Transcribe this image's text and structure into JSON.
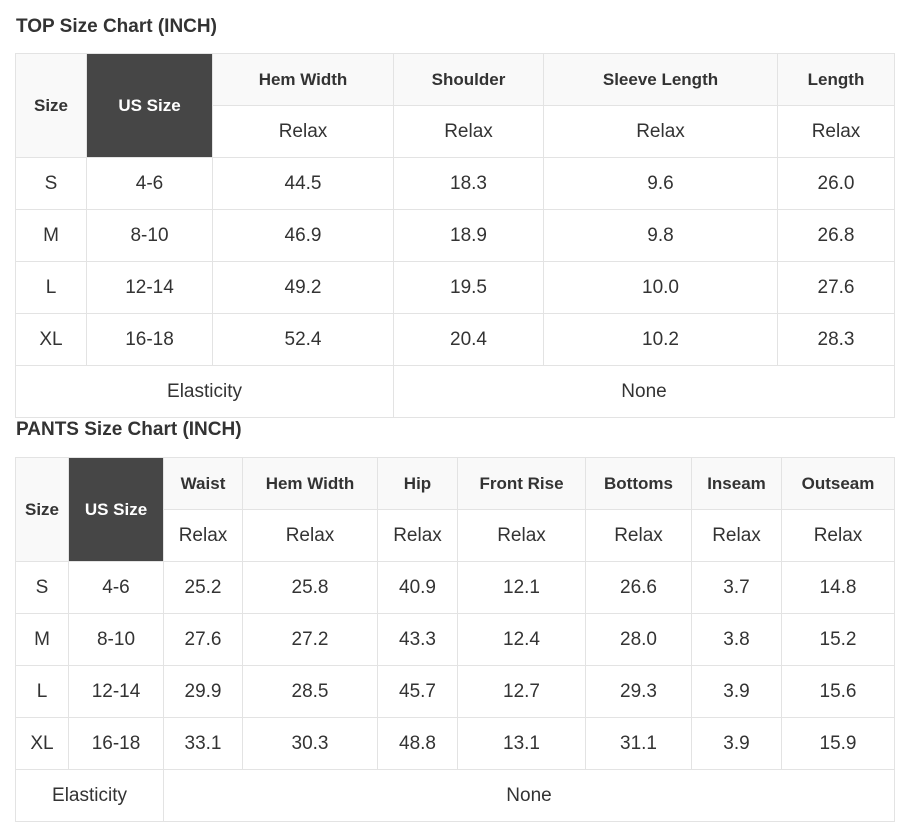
{
  "top": {
    "title": "TOP Size Chart (INCH)",
    "size_label": "Size",
    "us_size_label": "US Size",
    "measure_headers": [
      "Hem Width",
      "Shoulder",
      "Sleeve Length",
      "Length"
    ],
    "fit_labels": [
      "Relax",
      "Relax",
      "Relax",
      "Relax"
    ],
    "rows": [
      [
        "S",
        "4-6",
        "44.5",
        "18.3",
        "9.6",
        "26.0"
      ],
      [
        "M",
        "8-10",
        "46.9",
        "18.9",
        "9.8",
        "26.8"
      ],
      [
        "L",
        "12-14",
        "49.2",
        "19.5",
        "10.0",
        "27.6"
      ],
      [
        "XL",
        "16-18",
        "52.4",
        "20.4",
        "10.2",
        "28.3"
      ]
    ],
    "elasticity_label": "Elasticity",
    "elasticity_value": "None"
  },
  "pants": {
    "title": "PANTS Size Chart (INCH)",
    "size_label": "Size",
    "us_size_label": "US Size",
    "measure_headers": [
      "Waist",
      "Hem Width",
      "Hip",
      "Front Rise",
      "Bottoms",
      "Inseam",
      "Outseam"
    ],
    "fit_labels": [
      "Relax",
      "Relax",
      "Relax",
      "Relax",
      "Relax",
      "Relax",
      "Relax"
    ],
    "rows": [
      [
        "S",
        "4-6",
        "25.2",
        "25.8",
        "40.9",
        "12.1",
        "26.6",
        "3.7",
        "14.8"
      ],
      [
        "M",
        "8-10",
        "27.6",
        "27.2",
        "43.3",
        "12.4",
        "28.0",
        "3.8",
        "15.2"
      ],
      [
        "L",
        "12-14",
        "29.9",
        "28.5",
        "45.7",
        "12.7",
        "29.3",
        "3.9",
        "15.6"
      ],
      [
        "XL",
        "16-18",
        "33.1",
        "30.3",
        "48.8",
        "13.1",
        "31.1",
        "3.9",
        "15.9"
      ]
    ],
    "elasticity_label": "Elasticity",
    "elasticity_value": "None"
  },
  "colors": {
    "header_dark": "#464646",
    "header_light": "#f9f9f9",
    "border": "#e3e3e3",
    "text": "#333333"
  }
}
